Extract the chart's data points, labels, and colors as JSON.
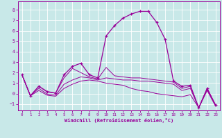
{
  "xlabel": "Windchill (Refroidissement éolien,°C)",
  "bg_color": "#c8e8e8",
  "line_color": "#990099",
  "xlim": [
    -0.5,
    23.5
  ],
  "ylim": [
    -1.6,
    8.8
  ],
  "xticks": [
    0,
    1,
    2,
    3,
    4,
    5,
    6,
    7,
    8,
    9,
    10,
    11,
    12,
    13,
    14,
    15,
    16,
    17,
    18,
    19,
    20,
    21,
    22,
    23
  ],
  "yticks": [
    -1,
    0,
    1,
    2,
    3,
    4,
    5,
    6,
    7,
    8
  ],
  "line1_x": [
    0,
    1,
    2,
    3,
    4,
    5,
    6,
    7,
    8,
    9,
    10,
    11,
    12,
    13,
    14,
    15,
    16,
    17,
    18,
    19,
    20,
    21,
    22,
    23
  ],
  "line1_y": [
    1.8,
    -0.2,
    0.7,
    0.2,
    0.05,
    1.8,
    2.6,
    2.9,
    1.8,
    1.5,
    5.5,
    6.5,
    7.2,
    7.6,
    7.85,
    7.85,
    6.8,
    5.2,
    1.2,
    0.7,
    0.8,
    -1.35,
    0.5,
    -1.1
  ],
  "line2_x": [
    0,
    1,
    2,
    3,
    4,
    5,
    6,
    7,
    8,
    9,
    10,
    11,
    12,
    13,
    14,
    15,
    16,
    17,
    18,
    19,
    20,
    21,
    22,
    23
  ],
  "line2_y": [
    1.8,
    -0.2,
    0.7,
    0.15,
    0.05,
    1.5,
    2.4,
    2.0,
    1.6,
    1.4,
    2.5,
    1.7,
    1.6,
    1.5,
    1.5,
    1.4,
    1.3,
    1.2,
    1.1,
    0.5,
    0.7,
    -1.35,
    0.5,
    -1.1
  ],
  "line3_x": [
    0,
    1,
    2,
    3,
    4,
    5,
    6,
    7,
    8,
    9,
    10,
    11,
    12,
    13,
    14,
    15,
    16,
    17,
    18,
    19,
    20,
    21,
    22,
    23
  ],
  "line3_y": [
    1.8,
    -0.2,
    0.5,
    -0.05,
    -0.15,
    0.9,
    1.3,
    1.6,
    1.5,
    1.3,
    1.5,
    1.4,
    1.3,
    1.3,
    1.2,
    1.2,
    1.1,
    1.0,
    0.9,
    0.3,
    0.5,
    -1.35,
    0.4,
    -1.1
  ],
  "line4_x": [
    0,
    1,
    2,
    3,
    4,
    5,
    6,
    7,
    8,
    9,
    10,
    11,
    12,
    13,
    14,
    15,
    16,
    17,
    18,
    19,
    20,
    21,
    22,
    23
  ],
  "line4_y": [
    1.8,
    -0.2,
    0.3,
    -0.15,
    -0.25,
    0.5,
    0.9,
    1.2,
    1.3,
    1.2,
    1.0,
    0.9,
    0.8,
    0.5,
    0.3,
    0.2,
    0.0,
    -0.1,
    -0.2,
    -0.3,
    -0.1,
    -1.35,
    0.3,
    -1.2
  ]
}
